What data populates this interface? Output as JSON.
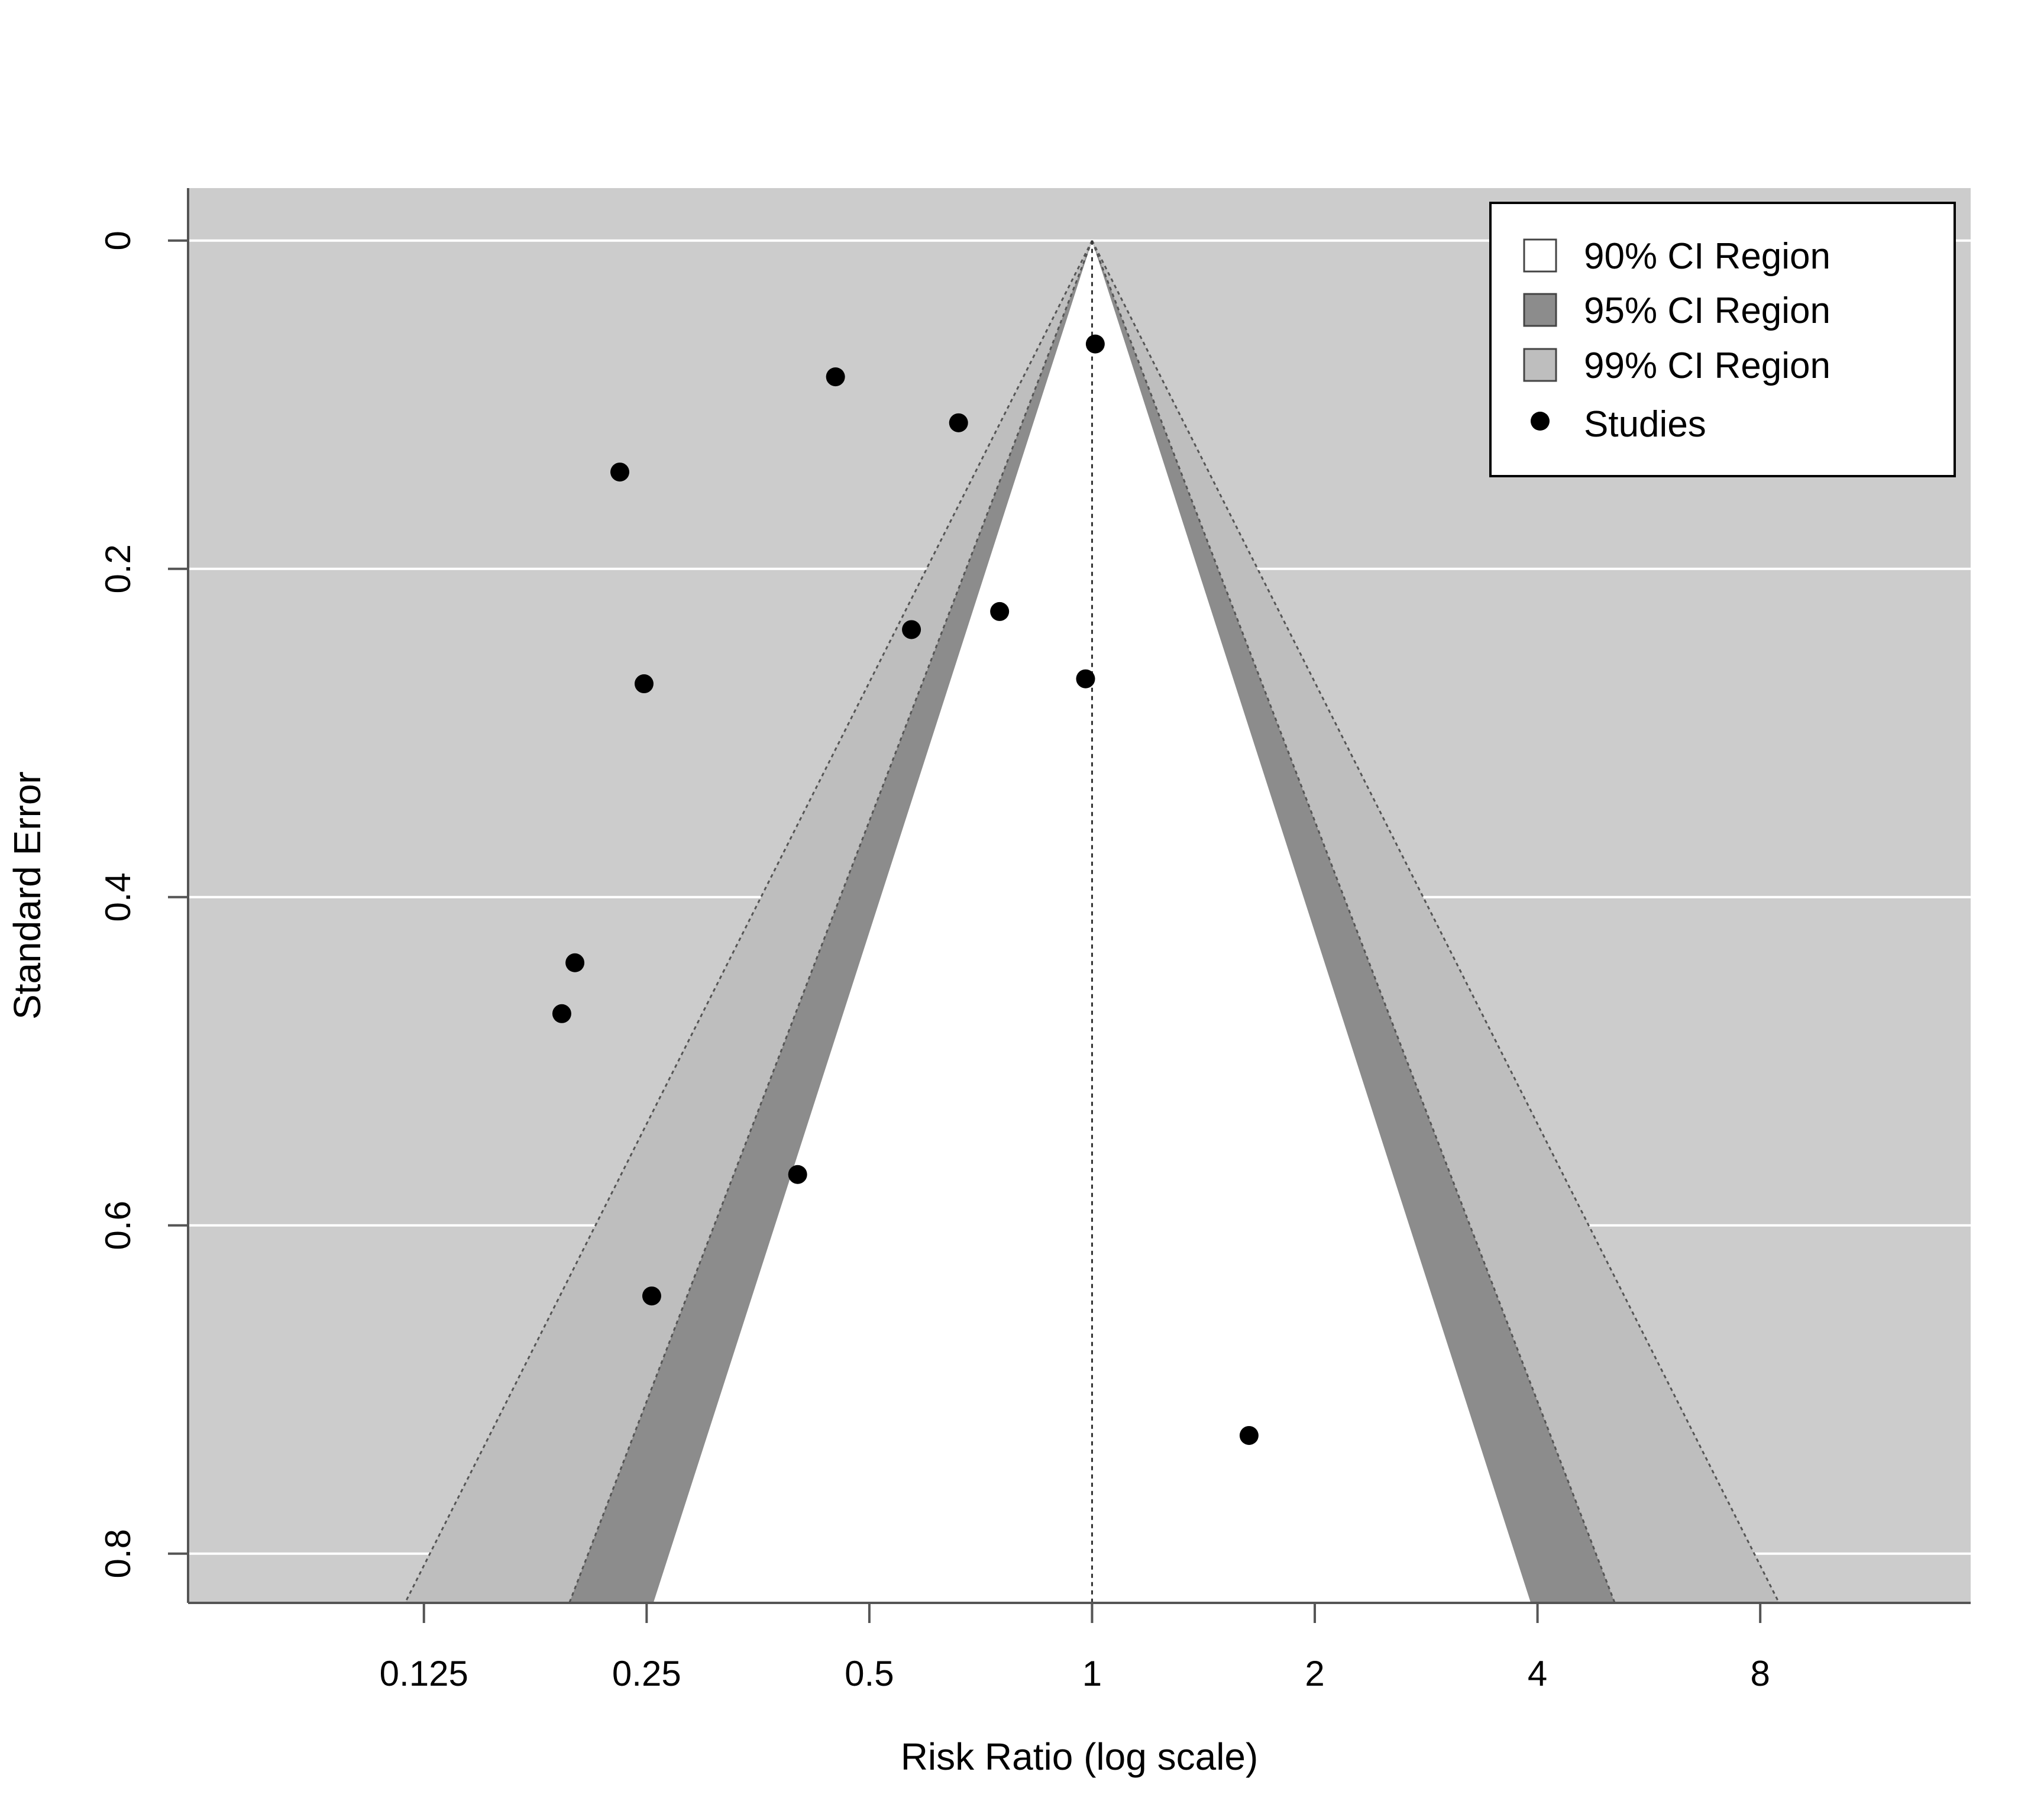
{
  "chart_data": {
    "type": "scatter",
    "subtype": "contour-enhanced funnel plot",
    "xlabel": "Risk Ratio (log scale)",
    "ylabel": "Standard Error",
    "x_scale": "log",
    "x_ticks": [
      {
        "value": 0.125,
        "label": "0.125"
      },
      {
        "value": 0.25,
        "label": "0.25"
      },
      {
        "value": 0.5,
        "label": "0.5"
      },
      {
        "value": 1,
        "label": "1"
      },
      {
        "value": 2,
        "label": "2"
      },
      {
        "value": 4,
        "label": "4"
      },
      {
        "value": 8,
        "label": "8"
      }
    ],
    "y_ticks": [
      {
        "value": 0,
        "label": "0"
      },
      {
        "value": 0.2,
        "label": "0.2"
      },
      {
        "value": 0.4,
        "label": "0.4"
      },
      {
        "value": 0.6,
        "label": "0.6"
      },
      {
        "value": 0.8,
        "label": "0.8"
      }
    ],
    "xlim": [
      0.06,
      15.4
    ],
    "ylim": [
      0.83,
      -0.032
    ],
    "y_reversed": true,
    "grid": "horizontal",
    "reference_line": {
      "x": 1,
      "style": "dotted"
    },
    "legend": {
      "position": "top-right",
      "items": [
        {
          "label": "90% CI Region",
          "color": "#ffffff",
          "marker": "square"
        },
        {
          "label": "95% CI Region",
          "color": "#8c8c8c",
          "marker": "square"
        },
        {
          "label": "99% CI Region",
          "color": "#bebebe",
          "marker": "square"
        },
        {
          "label": "Studies",
          "color": "#000000",
          "marker": "circle"
        }
      ]
    },
    "contour_levels": [
      {
        "level": "99%",
        "z": 2.576,
        "color": "#bebebe"
      },
      {
        "level": "95%",
        "z": 1.96,
        "color": "#8c8c8c"
      },
      {
        "level": "90%",
        "z": 1.645,
        "color": "#ffffff"
      }
    ],
    "colors": {
      "background": "#cccccc",
      "grid": "#ffffff",
      "points": "#000000",
      "axis": "#555555"
    },
    "series": [
      {
        "name": "Studies",
        "points": [
          {
            "x": 1.01,
            "y": 0.063
          },
          {
            "x": 0.45,
            "y": 0.083
          },
          {
            "x": 0.66,
            "y": 0.111
          },
          {
            "x": 0.23,
            "y": 0.141
          },
          {
            "x": 0.75,
            "y": 0.226
          },
          {
            "x": 0.57,
            "y": 0.237
          },
          {
            "x": 0.98,
            "y": 0.267
          },
          {
            "x": 0.248,
            "y": 0.27
          },
          {
            "x": 0.2,
            "y": 0.44
          },
          {
            "x": 0.192,
            "y": 0.471
          },
          {
            "x": 0.4,
            "y": 0.569
          },
          {
            "x": 0.254,
            "y": 0.643
          },
          {
            "x": 1.63,
            "y": 0.728
          }
        ]
      }
    ]
  }
}
